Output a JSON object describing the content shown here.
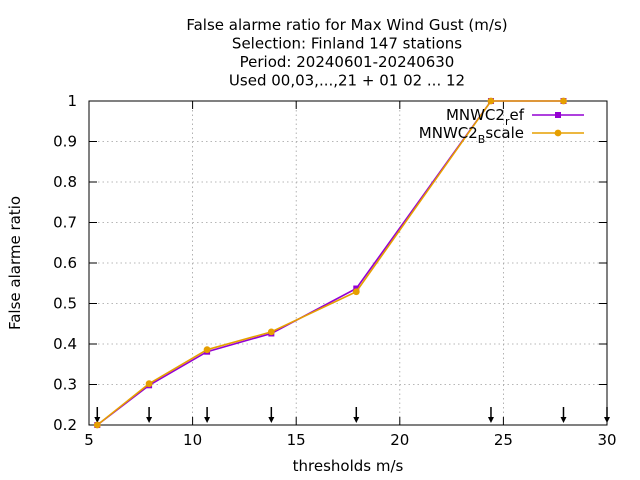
{
  "chart_data": {
    "type": "line",
    "title_lines": [
      "False alarme ratio  for Max Wind Gust (m/s)",
      "Selection: Finland    147 stations",
      "Period: 20240601-20240630",
      "Used 00,03,...,21 + 01 02 ... 12"
    ],
    "xlabel": "thresholds m/s",
    "ylabel": "False alarme ratio",
    "xlim": [
      5,
      30
    ],
    "ylim": [
      0.2,
      1
    ],
    "xticks": [
      5,
      10,
      15,
      20,
      25,
      30
    ],
    "yticks": [
      0.2,
      0.3,
      0.4,
      0.5,
      0.6,
      0.7,
      0.8,
      0.9,
      1
    ],
    "ytick_labels": [
      "0.2",
      "0.3",
      "0.4",
      "0.5",
      "0.6",
      "0.7",
      "0.8",
      "0.9",
      "1"
    ],
    "grid": true,
    "legend_position": "top-right",
    "threshold_markers": [
      5.4,
      7.9,
      10.7,
      13.8,
      17.9,
      24.4,
      27.9,
      30
    ],
    "series": [
      {
        "name_main": "MNWC2",
        "name_sub": "r",
        "name_tail": "ef",
        "color": "#9400d3",
        "x": [
          5.4,
          7.9,
          10.7,
          13.8,
          17.9,
          24.4,
          27.9
        ],
        "values": [
          0.2,
          0.298,
          0.381,
          0.426,
          0.537,
          1.0,
          1.0
        ]
      },
      {
        "name_main": "MNWC2",
        "name_sub": "B",
        "name_tail": "scale",
        "color": "#e69f00",
        "x": [
          5.4,
          7.9,
          10.7,
          13.8,
          17.9,
          24.4,
          27.9
        ],
        "values": [
          0.2,
          0.302,
          0.386,
          0.43,
          0.529,
          1.0,
          1.0
        ]
      }
    ]
  }
}
